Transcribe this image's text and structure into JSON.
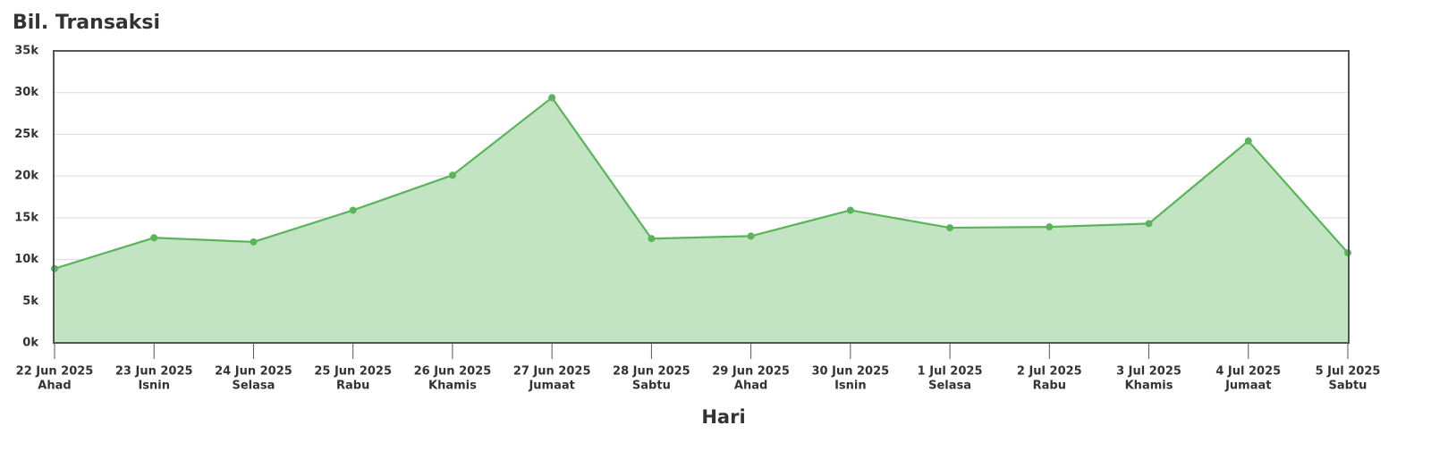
{
  "chart_data": {
    "type": "area",
    "title": "Bil. Transaksi",
    "x_label": "Hari",
    "categories": [
      "22 Jun 2025",
      "23 Jun 2025",
      "24 Jun 2025",
      "25 Jun 2025",
      "26 Jun 2025",
      "27 Jun 2025",
      "28 Jun 2025",
      "29 Jun 2025",
      "30 Jun 2025",
      "1 Jul 2025",
      "2 Jul 2025",
      "3 Jul 2025",
      "4 Jul 2025",
      "5 Jul 2025"
    ],
    "category_sublabels": [
      "Ahad",
      "Isnin",
      "Selasa",
      "Rabu",
      "Khamis",
      "Jumaat",
      "Sabtu",
      "Ahad",
      "Isnin",
      "Selasa",
      "Rabu",
      "Khamis",
      "Jumaat",
      "Sabtu"
    ],
    "values": [
      8900,
      12600,
      12100,
      15900,
      20100,
      29400,
      12500,
      12800,
      15900,
      13800,
      13900,
      14300,
      24200,
      10800
    ],
    "color": "#5cb35c",
    "fill": "#c0e3bf",
    "ylim": [
      0,
      35000
    ],
    "yticks": [
      {
        "value": 0,
        "label": "0k"
      },
      {
        "value": 5000,
        "label": "5k"
      },
      {
        "value": 10000,
        "label": "10k"
      },
      {
        "value": 15000,
        "label": "15k"
      },
      {
        "value": 20000,
        "label": "20k"
      },
      {
        "value": 25000,
        "label": "25k"
      },
      {
        "value": 30000,
        "label": "30k"
      },
      {
        "value": 35000,
        "label": "35k"
      }
    ],
    "grid": true
  }
}
